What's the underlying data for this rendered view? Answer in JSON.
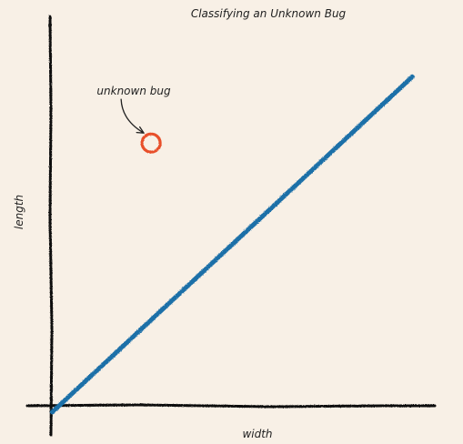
{
  "chart_data": {
    "type": "scatter",
    "title": "Classifying an Unknown Bug",
    "xlabel": "width",
    "ylabel": "length",
    "xlim": [
      0,
      1
    ],
    "ylim": [
      0,
      1
    ],
    "grid": false,
    "legend": "none",
    "series": [
      {
        "kind": "line",
        "color": "#1f6fa8",
        "x": [
          0.04,
          0.95
        ],
        "y": [
          0.03,
          0.94
        ]
      },
      {
        "kind": "point",
        "color": "#e8502a",
        "x": [
          0.29
        ],
        "y": [
          0.76
        ]
      }
    ],
    "annotations": [
      {
        "text": "unknown bug",
        "target_x": 0.29,
        "target_y": 0.76
      }
    ]
  }
}
